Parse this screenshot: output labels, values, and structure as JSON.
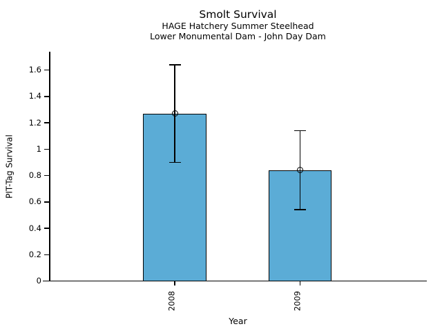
{
  "header": {
    "title": "Smolt Survival",
    "subtitle1": "HAGE Hatchery Summer Steelhead",
    "subtitle2": "Lower Monumental Dam - John Day Dam"
  },
  "chart_data": {
    "type": "bar",
    "title": "Smolt Survival",
    "subtitle": [
      "HAGE Hatchery Summer Steelhead",
      "Lower Monumental Dam - John Day Dam"
    ],
    "categories": [
      "2008",
      "2009"
    ],
    "values": [
      1.27,
      0.84
    ],
    "error_bars": {
      "lower": [
        0.9,
        0.54
      ],
      "upper": [
        1.64,
        1.14
      ]
    },
    "marker": "open-circle",
    "xlabel": "Year",
    "ylabel": "PIT-Tag Survival",
    "ylim": [
      0,
      1.74
    ],
    "yticks": [
      0,
      0.2,
      0.4,
      0.6,
      0.8,
      1,
      1.2,
      1.4,
      1.6
    ],
    "ytick_labels": [
      "0",
      "0.2",
      "0.4",
      "0.6",
      "0.8",
      "1",
      "1.2",
      "1.4",
      "1.6"
    ],
    "xtick_label_rotation_deg": -90,
    "grid": false,
    "legend": null,
    "bar_color": "#5BACD6",
    "edge_color": "#000000",
    "axis_color": "#000000",
    "text_color": "#000000",
    "background_color": "#FFFFFF"
  }
}
